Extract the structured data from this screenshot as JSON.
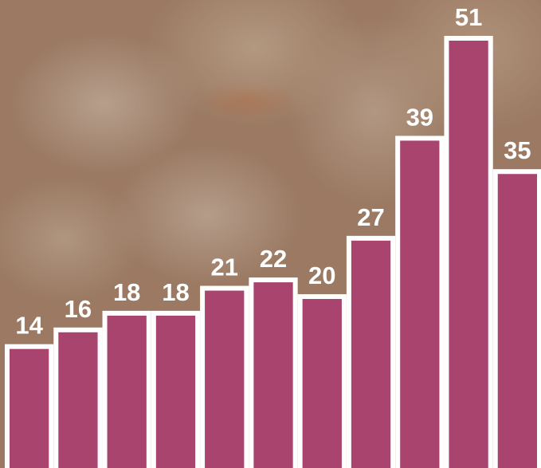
{
  "chart_data": {
    "type": "bar",
    "values": [
      14,
      16,
      18,
      18,
      21,
      22,
      20,
      27,
      39,
      51,
      35
    ],
    "color": "#a9446f"
  }
}
